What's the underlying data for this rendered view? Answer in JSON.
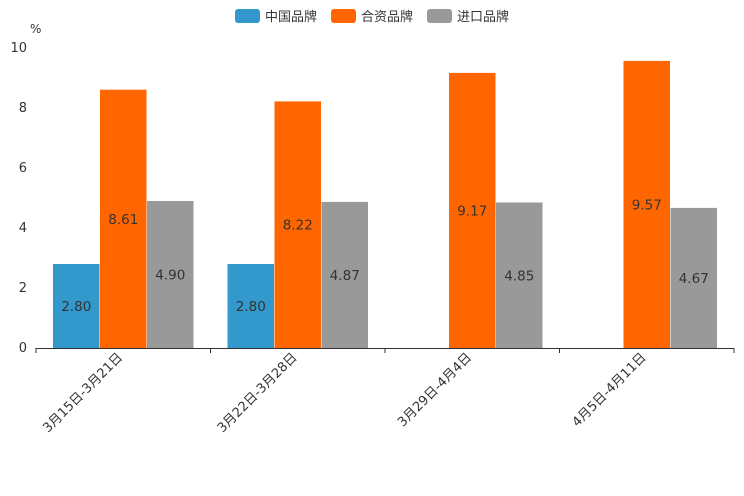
{
  "chart_data": {
    "type": "bar",
    "unit_label": "%",
    "categories": [
      "3月15日-3月21日",
      "3月22日-3月28日",
      "3月29日-4月4日",
      "4月5日-4月11日"
    ],
    "series": [
      {
        "name": "中国品牌",
        "color": "#3398CC",
        "values": [
          2.8,
          2.8,
          null,
          null
        ],
        "labels": [
          "2.80",
          "2.80",
          null,
          null
        ]
      },
      {
        "name": "合资品牌",
        "color": "#FF6600",
        "values": [
          8.61,
          8.22,
          9.17,
          9.57
        ],
        "labels": [
          "8.61",
          "8.22",
          "9.17",
          "9.57"
        ]
      },
      {
        "name": "进口品牌",
        "color": "#999999",
        "values": [
          4.9,
          4.87,
          4.85,
          4.67
        ],
        "labels": [
          "4.90",
          "4.87",
          "4.85",
          "4.67"
        ]
      }
    ],
    "yticks": [
      "0",
      "2",
      "4",
      "6",
      "8",
      "10"
    ],
    "ylim": [
      0,
      10
    ],
    "legend_position": "top-center"
  }
}
